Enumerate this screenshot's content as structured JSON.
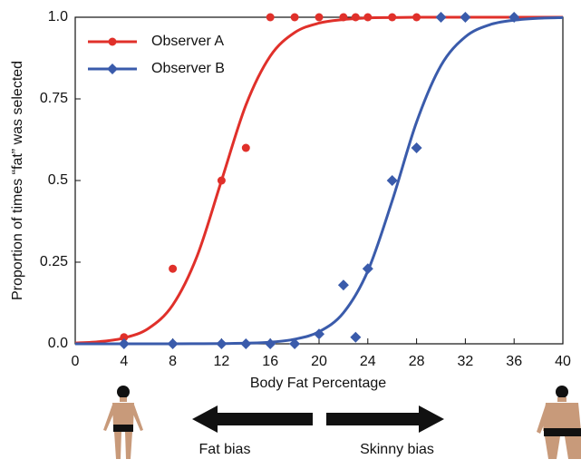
{
  "chart_data": {
    "type": "scatter",
    "x_label": "Body Fat Percentage",
    "y_label": "Proportion of times “fat” was selected",
    "xlim": [
      0,
      40
    ],
    "ylim": [
      0,
      1
    ],
    "xticks": [
      0,
      4,
      8,
      12,
      16,
      20,
      24,
      28,
      32,
      36,
      40
    ],
    "yticks": [
      {
        "value": 0,
        "label": "0.0"
      },
      0.25,
      0.5,
      0.75,
      {
        "value": 1,
        "label": "1.0"
      }
    ],
    "legend": "upper left",
    "curve_x": [
      0,
      2,
      4,
      6,
      8,
      10,
      12,
      14,
      16,
      18,
      20,
      22,
      24,
      26,
      28,
      30,
      32,
      34,
      36,
      38,
      40
    ],
    "series": [
      {
        "name": "Observer A",
        "color": "#e0302a",
        "marker": "circle",
        "x": [
          4,
          8,
          12,
          14,
          16,
          18,
          20,
          22,
          23,
          24,
          26,
          28
        ],
        "values": [
          0.02,
          0.23,
          0.5,
          0.6,
          1,
          1,
          1,
          1,
          1,
          1,
          1,
          1
        ],
        "curve_values": [
          0.0025,
          0.0067,
          0.018,
          0.047,
          0.119,
          0.269,
          0.5,
          0.731,
          0.881,
          0.953,
          0.982,
          0.993,
          0.998,
          0.999,
          1,
          1,
          1,
          1,
          1,
          1,
          1
        ]
      },
      {
        "name": "Observer B",
        "color": "#3a5bab",
        "marker": "diamond",
        "x": [
          4,
          8,
          12,
          14,
          16,
          18,
          20,
          22,
          23,
          24,
          26,
          28,
          30,
          32,
          36
        ],
        "values": [
          0,
          0,
          0,
          0,
          0,
          0,
          0.03,
          0.18,
          0.02,
          0.23,
          0.5,
          0.6,
          1,
          1,
          1
        ],
        "curve_values": [
          0,
          0,
          0,
          0,
          0,
          0.0003,
          0.0007,
          0.002,
          0.005,
          0.014,
          0.037,
          0.095,
          0.223,
          0.438,
          0.679,
          0.852,
          0.94,
          0.977,
          0.991,
          0.997,
          0.999
        ]
      }
    ],
    "annotations": [
      "Fat bias",
      "Skinny bias"
    ]
  }
}
